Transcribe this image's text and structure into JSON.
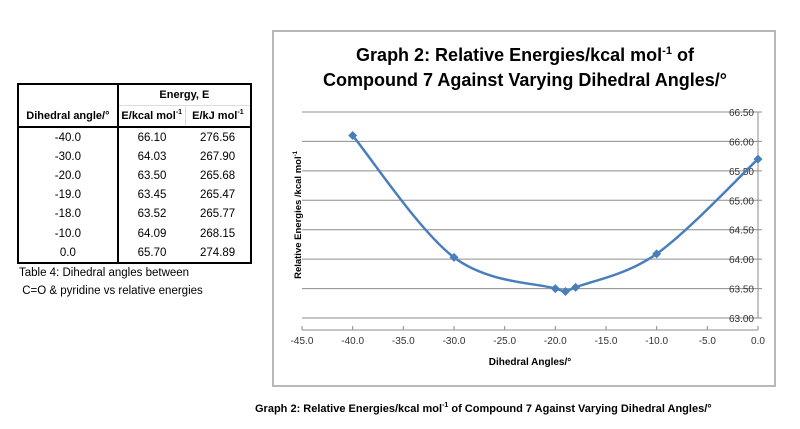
{
  "table": {
    "header_group": "Energy, E",
    "col1": "Dihedral angle/°",
    "col2": "E/kcal mol",
    "col2_sup": "-1",
    "col3": "E/kJ mol",
    "col3_sup": "-1",
    "rows": [
      [
        "-40.0",
        "66.10",
        "276.56"
      ],
      [
        "-30.0",
        "64.03",
        "267.90"
      ],
      [
        "-20.0",
        "63.50",
        "265.68"
      ],
      [
        "-19.0",
        "63.45",
        "265.47"
      ],
      [
        "-18.0",
        "63.52",
        "265.77"
      ],
      [
        "-10.0",
        "64.09",
        "268.15"
      ],
      [
        "0.0",
        "65.70",
        "274.89"
      ]
    ],
    "caption_line1": "Table 4: Dihedral angles between",
    "caption_line2": " C=O & pyridine vs relative energies"
  },
  "chart_data": {
    "type": "line",
    "title_line1_pre": "Graph 2: Relative Energies/kcal mol",
    "title_sup": "-1",
    "title_line1_post": " of",
    "title_line2": "Compound 7 Against Varying Dihedral Angles/°",
    "xlabel": "Dihedral Angles/°",
    "ylabel": "Relative Energies /kcal mol-1",
    "xlim": [
      -45,
      0
    ],
    "ylim": [
      63,
      66.5
    ],
    "x_ticks": [
      "-45.0",
      "-40.0",
      "-35.0",
      "-30.0",
      "-25.0",
      "-20.0",
      "-15.0",
      "-10.0",
      "-5.0",
      "0.0"
    ],
    "y_ticks": [
      "63.00",
      "63.50",
      "64.00",
      "64.50",
      "65.00",
      "65.50",
      "66.00",
      "66.50"
    ],
    "y_axis_side": "right",
    "grid": "horizontal",
    "smooth": true,
    "marker": "diamond",
    "color": "#4a7ebb",
    "series": [
      {
        "name": "Relative Energy",
        "x": [
          -40,
          -30,
          -20,
          -19,
          -18,
          -10,
          0
        ],
        "y": [
          66.1,
          64.03,
          63.5,
          63.45,
          63.52,
          64.09,
          65.7
        ]
      }
    ]
  },
  "bottom_caption": {
    "pre": "Graph 2: Relative Energies/kcal mol",
    "sup": "-1",
    "post": " of Compound 7 Against Varying Dihedral Angles/°"
  }
}
